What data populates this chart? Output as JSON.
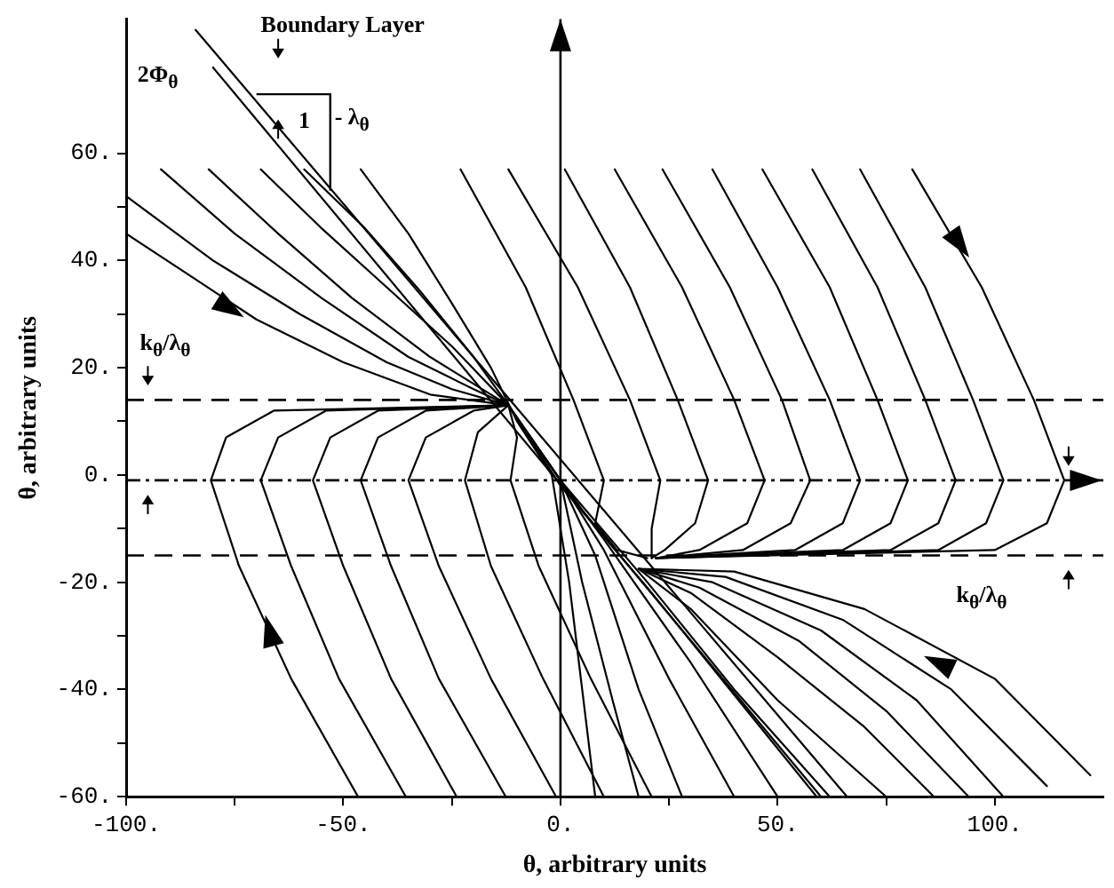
{
  "chart_data": {
    "type": "line",
    "xlabel": "θ, arbitrary units",
    "ylabel": "θ, arbitrary units",
    "annotations": [
      "Boundary Layer",
      "2Φ$_{θ}$",
      "1",
      "- λ$_{θ}$",
      "k$_{θ}$/λ$_{θ}$",
      "k$_{θ}$/λ$_{θ}$"
    ],
    "marker": "none",
    "line_style": "solid",
    "grid": false,
    "legend": false,
    "xlim": [
      -100,
      125
    ],
    "ylim": [
      -60,
      85
    ],
    "xticks": [
      {
        "value": -100,
        "label": "-100."
      },
      {
        "value": -75,
        "label": null
      },
      {
        "value": -50,
        "label": "-50."
      },
      {
        "value": -25,
        "label": null
      },
      {
        "value": 0,
        "label": "0."
      },
      {
        "value": 25,
        "label": null
      },
      {
        "value": 50,
        "label": "50."
      },
      {
        "value": 75,
        "label": null
      },
      {
        "value": 100,
        "label": "100."
      }
    ],
    "yticks": [
      {
        "value": -60,
        "label": "-60."
      },
      {
        "value": -50,
        "label": null
      },
      {
        "value": -40,
        "label": "-40."
      },
      {
        "value": -30,
        "label": null
      },
      {
        "value": -20,
        "label": "-20."
      },
      {
        "value": -10,
        "label": null
      },
      {
        "value": 0,
        "label": "0."
      },
      {
        "value": 10,
        "label": null
      },
      {
        "value": 20,
        "label": "20."
      },
      {
        "value": 30,
        "label": null
      },
      {
        "value": 40,
        "label": "40."
      },
      {
        "value": 50,
        "label": null
      },
      {
        "value": 60,
        "label": "60."
      }
    ],
    "ref_lines": [
      {
        "axis": "y",
        "value": 14,
        "line_style": "dashed",
        "color": "#000000"
      },
      {
        "axis": "y",
        "value": -1,
        "line_style": "dotted",
        "color": "#000000"
      },
      {
        "axis": "y",
        "value": -15,
        "line_style": "dashed",
        "color": "#000000"
      },
      {
        "axis": "x",
        "value": 0,
        "line_style": "solid",
        "color": "#000000"
      }
    ],
    "series": [
      {
        "color": "#000000",
        "x": [
          -84,
          66
        ],
        "values": [
          83,
          -60
        ]
      },
      {
        "color": "#000000",
        "x": [
          -80,
          60
        ],
        "values": [
          76,
          -60
        ]
      },
      {
        "color": "#000000",
        "x": [
          -100,
          -80,
          -60,
          -40,
          -25,
          -12,
          0,
          20,
          40,
          62
        ],
        "values": [
          52,
          40,
          30,
          21,
          16,
          13,
          -1,
          -20,
          -40,
          -60
        ]
      },
      {
        "color": "#000000",
        "x": [
          -100,
          -85,
          -70,
          -50,
          -30,
          -12,
          0,
          20,
          40,
          59
        ],
        "values": [
          45,
          37,
          29,
          21,
          15,
          13,
          -2,
          -21,
          -41,
          -60
        ]
      },
      {
        "color": "#000000",
        "x": [
          -92,
          -75,
          -55,
          -35,
          -20,
          -12,
          0,
          10,
          30,
          50
        ],
        "values": [
          57,
          45,
          33,
          22,
          16,
          13,
          -1,
          -12,
          -35,
          -60
        ]
      },
      {
        "color": "#000000",
        "x": [
          -81,
          -65,
          -48,
          -30,
          -12,
          0,
          10,
          25,
          40
        ],
        "values": [
          57,
          45,
          33,
          22,
          13,
          -1,
          -14,
          -38,
          -60
        ]
      },
      {
        "color": "#000000",
        "x": [
          -69,
          -55,
          -40,
          -25,
          -12,
          0,
          8,
          18,
          28
        ],
        "values": [
          57,
          46,
          35,
          24,
          13,
          -1,
          -15,
          -40,
          -60
        ]
      },
      {
        "color": "#000000",
        "x": [
          -59,
          -45,
          -32,
          -20,
          -12,
          0,
          5,
          12,
          18
        ],
        "values": [
          57,
          46,
          34,
          22,
          13,
          -1,
          -20,
          -42,
          -60
        ]
      },
      {
        "color": "#000000",
        "x": [
          -46,
          -35,
          -25,
          -16,
          -10,
          -2,
          2,
          5,
          8
        ],
        "values": [
          57,
          45,
          32,
          20,
          10,
          0,
          -20,
          -40,
          -60
        ]
      },
      {
        "color": "#000000",
        "x": [
          -23,
          -8,
          3,
          10,
          8,
          13,
          20
        ],
        "values": [
          57,
          35,
          14,
          -1,
          -9,
          -14,
          -15.5
        ]
      },
      {
        "color": "#000000",
        "x": [
          -12,
          4,
          16,
          23,
          21,
          21
        ],
        "values": [
          57,
          35,
          14,
          -1,
          -10,
          -15.5
        ]
      },
      {
        "color": "#000000",
        "x": [
          1,
          16,
          27,
          34,
          31,
          24,
          21
        ],
        "values": [
          57,
          35,
          14,
          -1,
          -9,
          -14,
          -15.5
        ]
      },
      {
        "color": "#000000",
        "x": [
          12.5,
          28,
          40,
          47,
          43,
          32,
          22
        ],
        "values": [
          57,
          35,
          14,
          -1,
          -9,
          -14,
          -15.5
        ]
      },
      {
        "color": "#000000",
        "x": [
          23.5,
          39,
          51,
          57.5,
          53,
          42,
          22
        ],
        "values": [
          57,
          35,
          14,
          -1,
          -9,
          -14,
          -15.5
        ]
      },
      {
        "color": "#000000",
        "x": [
          35,
          50,
          62,
          69,
          65,
          54,
          22
        ],
        "values": [
          57,
          35,
          14,
          -1,
          -9,
          -14,
          -15.5
        ]
      },
      {
        "color": "#000000",
        "x": [
          46.5,
          62,
          73,
          80,
          76,
          65,
          22
        ],
        "values": [
          57,
          35,
          14,
          -1,
          -9,
          -14,
          -15.5
        ]
      },
      {
        "color": "#000000",
        "x": [
          58,
          73,
          84,
          91,
          87,
          76,
          22
        ],
        "values": [
          57,
          35,
          14,
          -1,
          -9,
          -14,
          -15.5
        ]
      },
      {
        "color": "#000000",
        "x": [
          69,
          84,
          95,
          102,
          98,
          87,
          22
        ],
        "values": [
          57,
          35,
          14,
          -1,
          -9,
          -14,
          -15.5
        ]
      },
      {
        "color": "#000000",
        "x": [
          81,
          97,
          109,
          116,
          112,
          100,
          22
        ],
        "values": [
          57,
          35,
          14,
          -1,
          -9,
          -14,
          -15.5
        ]
      },
      {
        "color": "#000000",
        "x": [
          -46.6,
          -62,
          -74,
          -80.5,
          -77,
          -66,
          -12
        ],
        "values": [
          -60,
          -38,
          -17,
          -1,
          7,
          12,
          13
        ]
      },
      {
        "color": "#000000",
        "x": [
          -35.6,
          -51,
          -62,
          -69,
          -65,
          -54,
          -12
        ],
        "values": [
          -60,
          -38,
          -17,
          -1,
          7,
          12,
          13
        ]
      },
      {
        "color": "#000000",
        "x": [
          -23.9,
          -39,
          -50,
          -57,
          -53,
          -42,
          -12
        ],
        "values": [
          -60,
          -38,
          -17,
          -1,
          7,
          12,
          13
        ]
      },
      {
        "color": "#000000",
        "x": [
          -12.6,
          -28,
          -39,
          -46,
          -42,
          -31,
          -12
        ],
        "values": [
          -60,
          -38,
          -17,
          -1,
          7,
          12,
          13
        ]
      },
      {
        "color": "#000000",
        "x": [
          -1,
          -16,
          -28,
          -35,
          -31,
          -20,
          -12
        ],
        "values": [
          -60,
          -38,
          -17,
          -1,
          7,
          12,
          13
        ]
      },
      {
        "color": "#000000",
        "x": [
          10,
          -4,
          -16,
          -22,
          -19,
          -12
        ],
        "values": [
          -60,
          -38,
          -17,
          -1,
          8,
          13
        ]
      },
      {
        "color": "#000000",
        "x": [
          21,
          7,
          -5,
          -11.5,
          -10,
          -12
        ],
        "values": [
          -60,
          -38,
          -17,
          -1,
          7,
          13
        ]
      },
      {
        "color": "#000000",
        "x": [
          18,
          30,
          50,
          75
        ],
        "values": [
          -17.5,
          -25,
          -42,
          -60
        ]
      },
      {
        "color": "#000000",
        "x": [
          18,
          30,
          50,
          70,
          86
        ],
        "values": [
          -17.5,
          -22,
          -34,
          -47,
          -60
        ]
      },
      {
        "color": "#000000",
        "x": [
          18,
          32,
          55,
          75,
          94
        ],
        "values": [
          -17.5,
          -21,
          -31,
          -44,
          -60
        ]
      },
      {
        "color": "#000000",
        "x": [
          18,
          35,
          60,
          82,
          102
        ],
        "values": [
          -17.5,
          -20,
          -29,
          -42,
          -60
        ]
      },
      {
        "color": "#000000",
        "x": [
          18,
          38,
          65,
          90,
          112
        ],
        "values": [
          -17.5,
          -19,
          -27,
          -40,
          -58
        ]
      },
      {
        "color": "#000000",
        "x": [
          18,
          40,
          70,
          100,
          122
        ],
        "values": [
          -17.5,
          -18,
          -25,
          -38,
          -56
        ]
      }
    ]
  }
}
